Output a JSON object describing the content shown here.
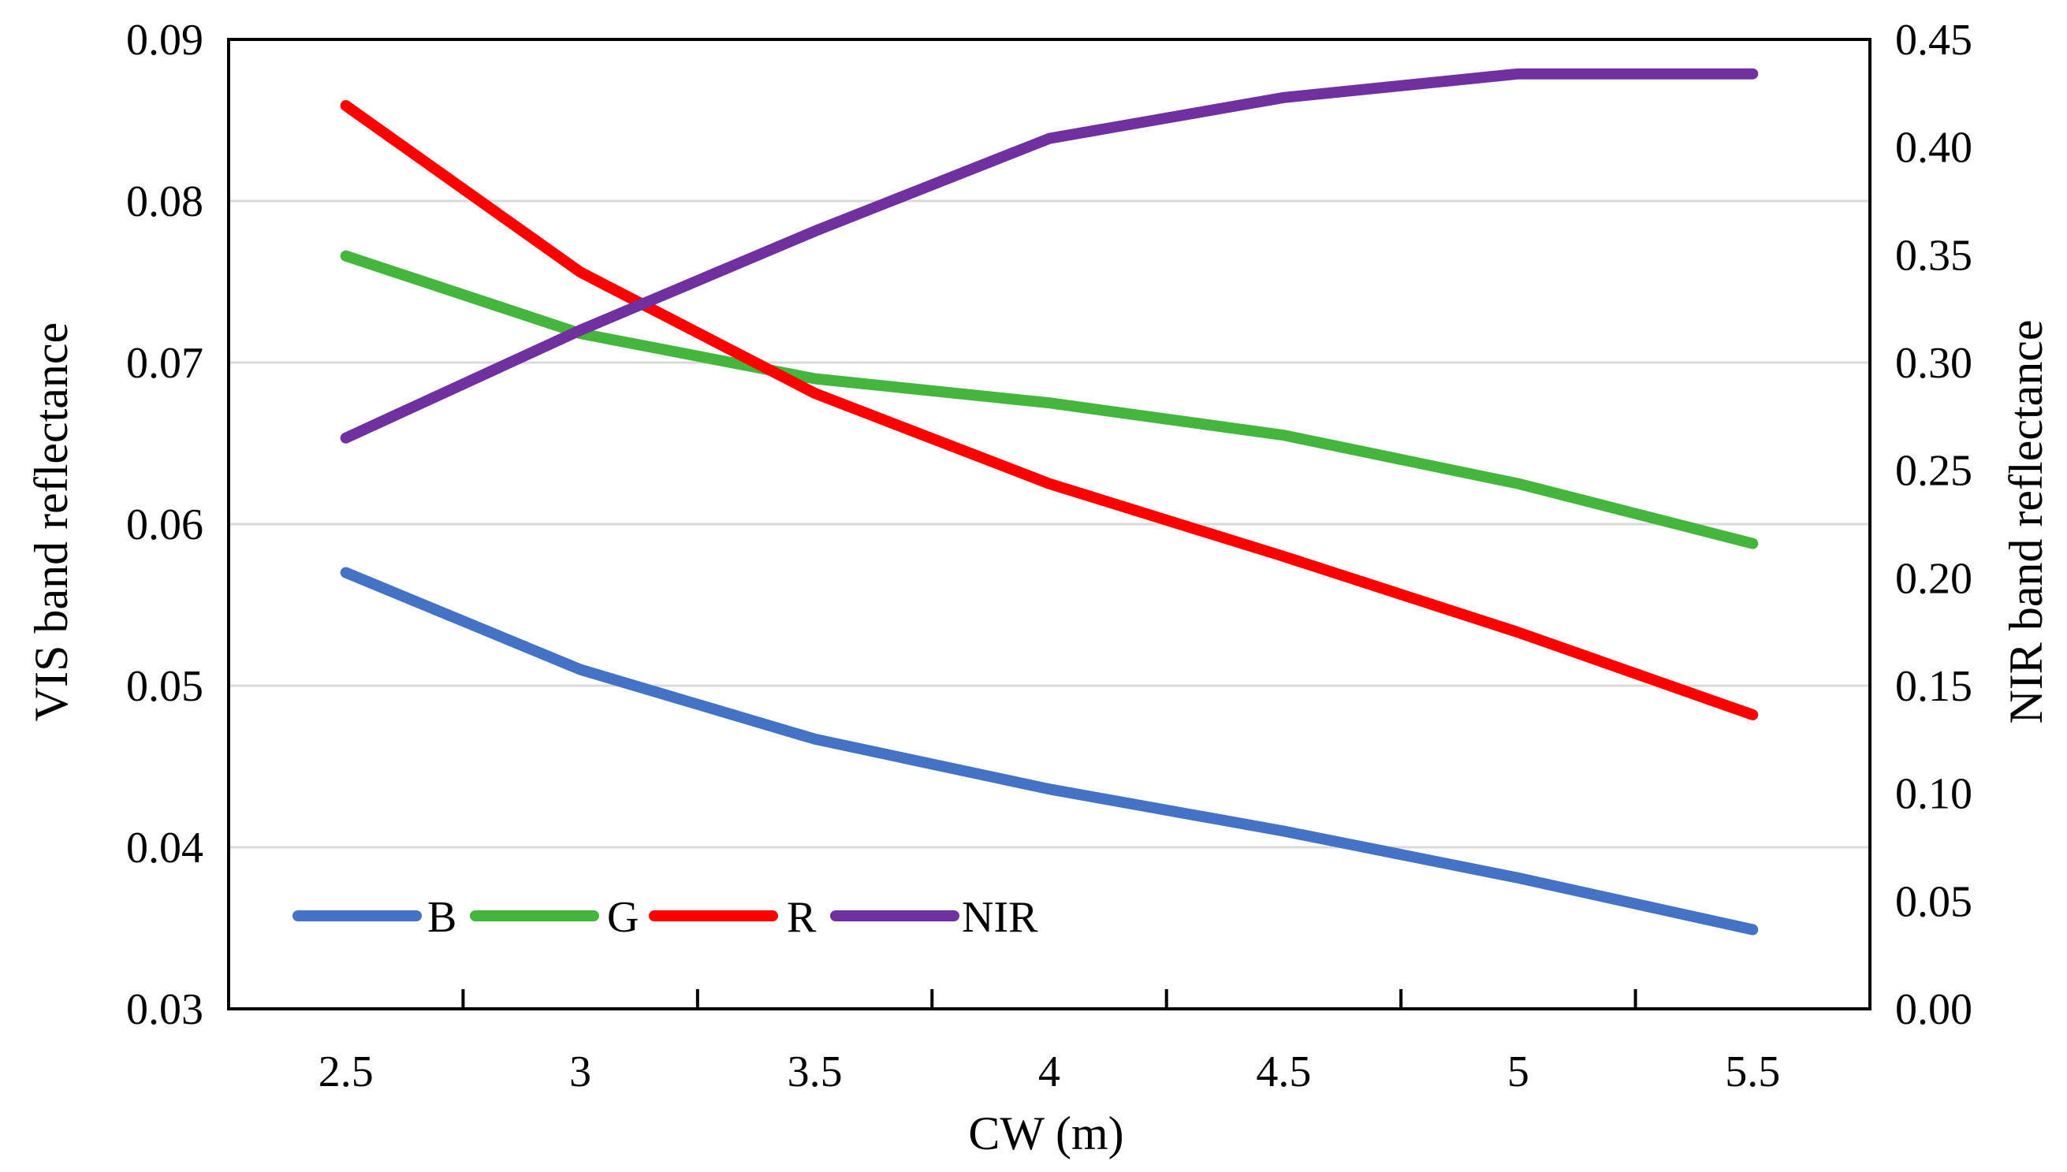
{
  "chart_data": {
    "type": "line",
    "x": [
      2.5,
      3,
      3.5,
      4,
      4.5,
      5,
      5.5
    ],
    "x_tick_labels": [
      "2.5",
      "3",
      "3.5",
      "4",
      "4.5",
      "5",
      "5.5"
    ],
    "xlabel": "CW (m)",
    "ylabel_left": "VIS band reflectance",
    "ylabel_right": "NIR band reflectance",
    "ylim_left": [
      0.03,
      0.09
    ],
    "ylim_right": [
      0.0,
      0.45
    ],
    "y_left_tick_labels": [
      "0.03",
      "0.04",
      "0.05",
      "0.06",
      "0.07",
      "0.08",
      "0.09"
    ],
    "y_right_tick_labels": [
      "0.00",
      "0.05",
      "0.10",
      "0.15",
      "0.20",
      "0.25",
      "0.30",
      "0.35",
      "0.40",
      "0.45"
    ],
    "grid": true,
    "legend_position": "bottom-left",
    "series": [
      {
        "name": "B",
        "axis": "left",
        "color": "#4472C4",
        "values": [
          0.057,
          0.051,
          0.0467,
          0.0436,
          0.041,
          0.0381,
          0.0349
        ]
      },
      {
        "name": "G",
        "axis": "left",
        "color": "#44B53D",
        "values": [
          0.0766,
          0.0718,
          0.069,
          0.0675,
          0.0655,
          0.0625,
          0.0588
        ]
      },
      {
        "name": "R",
        "axis": "left",
        "color": "#FF0000",
        "values": [
          0.0859,
          0.0756,
          0.0681,
          0.0625,
          0.058,
          0.0533,
          0.0482
        ]
      },
      {
        "name": "NIR",
        "axis": "right",
        "color": "#7030A0",
        "values": [
          0.265,
          0.315,
          0.361,
          0.404,
          0.423,
          0.434,
          0.434
        ]
      }
    ]
  }
}
